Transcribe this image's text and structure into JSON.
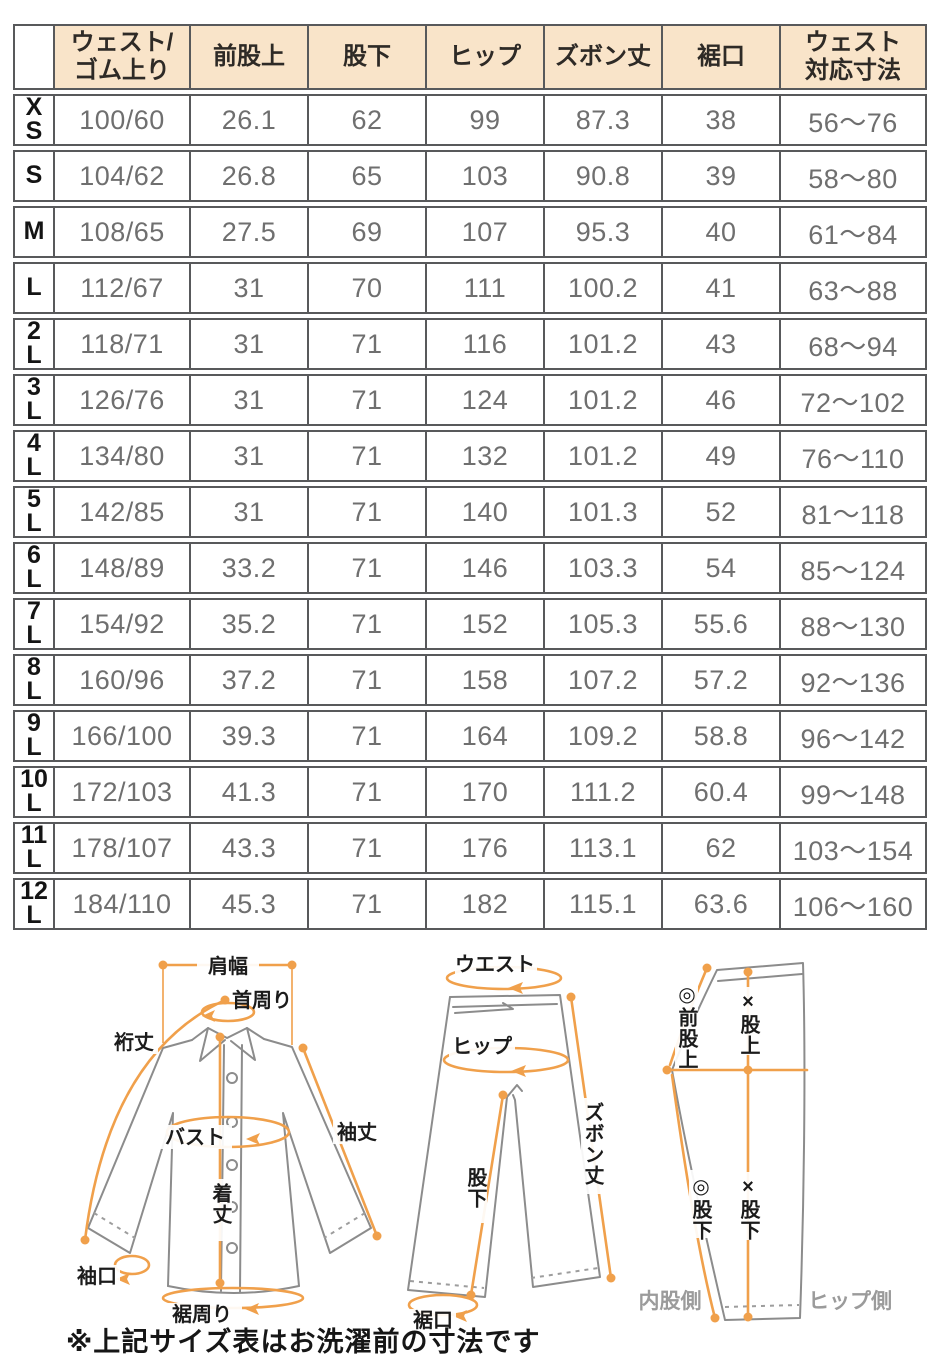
{
  "table": {
    "headers": [
      "",
      "ウェスト/\nゴム上り",
      "前股上",
      "股下",
      "ヒップ",
      "ズボン丈",
      "裾口",
      "ウェスト\n対応寸法"
    ],
    "rows": [
      {
        "size": "XS",
        "cells": [
          "100/60",
          "26.1",
          "62",
          "99",
          "87.3",
          "38",
          "56〜76"
        ]
      },
      {
        "size": "S",
        "cells": [
          "104/62",
          "26.8",
          "65",
          "103",
          "90.8",
          "39",
          "58〜80"
        ]
      },
      {
        "size": "M",
        "cells": [
          "108/65",
          "27.5",
          "69",
          "107",
          "95.3",
          "40",
          "61〜84"
        ]
      },
      {
        "size": "L",
        "cells": [
          "112/67",
          "31",
          "70",
          "111",
          "100.2",
          "41",
          "63〜88"
        ]
      },
      {
        "size": "2L",
        "cells": [
          "118/71",
          "31",
          "71",
          "116",
          "101.2",
          "43",
          "68〜94"
        ]
      },
      {
        "size": "3L",
        "cells": [
          "126/76",
          "31",
          "71",
          "124",
          "101.2",
          "46",
          "72〜102"
        ]
      },
      {
        "size": "4L",
        "cells": [
          "134/80",
          "31",
          "71",
          "132",
          "101.2",
          "49",
          "76〜110"
        ]
      },
      {
        "size": "5L",
        "cells": [
          "142/85",
          "31",
          "71",
          "140",
          "101.3",
          "52",
          "81〜118"
        ]
      },
      {
        "size": "6L",
        "cells": [
          "148/89",
          "33.2",
          "71",
          "146",
          "103.3",
          "54",
          "85〜124"
        ]
      },
      {
        "size": "7L",
        "cells": [
          "154/92",
          "35.2",
          "71",
          "152",
          "105.3",
          "55.6",
          "88〜130"
        ]
      },
      {
        "size": "8L",
        "cells": [
          "160/96",
          "37.2",
          "71",
          "158",
          "107.2",
          "57.2",
          "92〜136"
        ]
      },
      {
        "size": "9L",
        "cells": [
          "166/100",
          "39.3",
          "71",
          "164",
          "109.2",
          "58.8",
          "96〜142"
        ]
      },
      {
        "size": "10L",
        "cells": [
          "172/103",
          "41.3",
          "71",
          "170",
          "111.2",
          "60.4",
          "99〜148"
        ]
      },
      {
        "size": "11L",
        "cells": [
          "178/107",
          "43.3",
          "71",
          "176",
          "113.1",
          "62",
          "103〜154"
        ]
      },
      {
        "size": "12L",
        "cells": [
          "184/110",
          "45.3",
          "71",
          "182",
          "115.1",
          "63.6",
          "106〜160"
        ]
      }
    ]
  },
  "diagrams": {
    "shirt": {
      "shoulder_width": "肩幅",
      "neck": "首周り",
      "yuki": "裄丈",
      "bust": "バスト",
      "sleeve": "袖丈",
      "body_length": "着丈",
      "cuff": "袖口",
      "hem_round": "裾周り"
    },
    "pants": {
      "waist": "ウエスト",
      "hip": "ヒップ",
      "length": "ズボン丈",
      "inseam": "股下",
      "hem": "裾口"
    },
    "side": {
      "front_rise": "◎前股上",
      "rise": "×股上",
      "inseam_a": "◎股下",
      "inseam_b": "×股下",
      "inner_label": "内股側",
      "hip_label": "ヒップ側"
    }
  },
  "note": {
    "text": "※上記サイズ表はお洗濯前の寸法です"
  },
  "colors": {
    "accent": "#F0A04B",
    "header_bg": "#F9E4C9",
    "table_border": "#58595B",
    "value_text": "#6F6F6F",
    "garment_line": "#8C8C8C",
    "side_label_gray": "#9B9B9B"
  }
}
